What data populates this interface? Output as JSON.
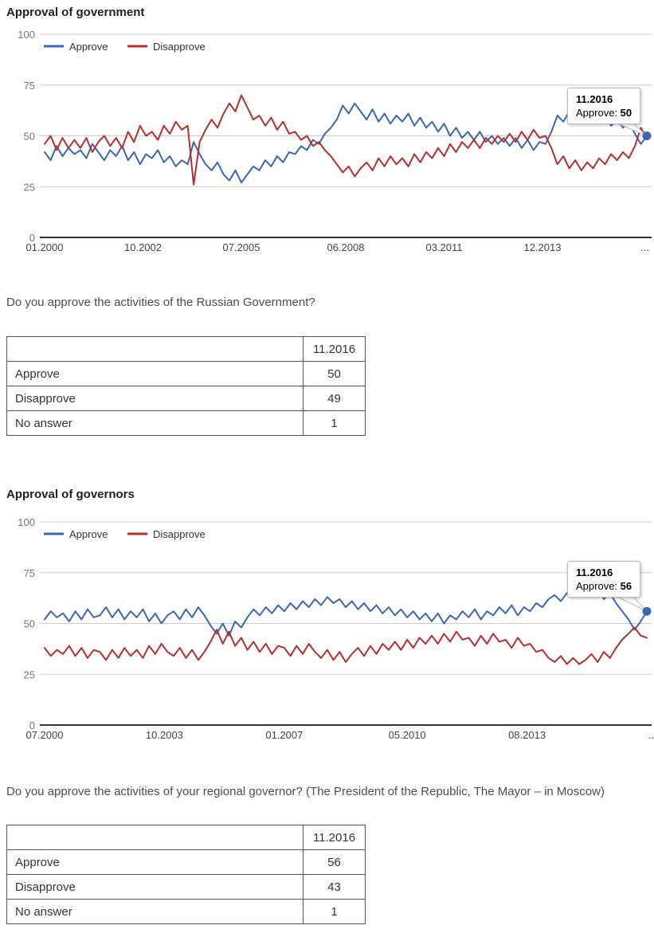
{
  "colors": {
    "approve": "#3b66b1",
    "disapprove": "#b82e2e",
    "grid": "#cccccc",
    "axis": "#333333",
    "ytick_label": "#757575",
    "xtick_label": "#444444",
    "legend_text": "#333333",
    "tooltip_border": "#bbbbbb"
  },
  "sections": [
    {
      "title": "Approval of government",
      "question": "Do you approve the activities of the Russian Government?"
    },
    {
      "title": "Approval of governors",
      "question": "Do you approve the activities of your regional governor? (The President of the Republic, The Mayor – in Moscow)"
    }
  ],
  "chart_data": [
    {
      "type": "line",
      "title": "Approval of government",
      "ylim": [
        0,
        100
      ],
      "yticks": [
        100,
        75,
        50,
        25,
        0
      ],
      "grid": true,
      "legend_position": "top-left",
      "x_start": "01.2000",
      "x_end": "11.2016",
      "total_months": 202,
      "xticks": [
        {
          "label": "01.2000",
          "month": 0
        },
        {
          "label": "10.2002",
          "month": 33
        },
        {
          "label": "07.2005",
          "month": 66
        },
        {
          "label": "06.2008",
          "month": 101
        },
        {
          "label": "03.2011",
          "month": 134
        },
        {
          "label": "12.2013",
          "month": 167
        },
        {
          "label": "...",
          "month": null
        }
      ],
      "series": [
        {
          "name": "Approve",
          "color": "#3b66b1",
          "values": [
            42,
            38,
            45,
            40,
            44,
            41,
            43,
            39,
            46,
            42,
            38,
            43,
            40,
            45,
            38,
            42,
            36,
            41,
            39,
            43,
            37,
            40,
            35,
            38,
            36,
            47,
            41,
            36,
            33,
            37,
            31,
            28,
            33,
            27,
            31,
            35,
            33,
            38,
            35,
            40,
            37,
            42,
            41,
            45,
            43,
            48,
            46,
            51,
            54,
            58,
            65,
            61,
            66,
            62,
            58,
            63,
            57,
            61,
            56,
            60,
            57,
            61,
            55,
            59,
            54,
            57,
            52,
            56,
            50,
            54,
            49,
            52,
            48,
            52,
            47,
            50,
            46,
            49,
            45,
            49,
            44,
            48,
            43,
            47,
            46,
            52,
            60,
            57,
            62,
            58,
            63,
            59,
            62,
            57,
            60,
            55,
            58,
            54,
            57,
            51,
            46,
            50
          ]
        },
        {
          "name": "Disapprove",
          "color": "#b82e2e",
          "values": [
            46,
            50,
            43,
            49,
            44,
            48,
            44,
            49,
            42,
            47,
            50,
            45,
            49,
            44,
            52,
            47,
            55,
            50,
            52,
            48,
            55,
            51,
            57,
            53,
            55,
            26,
            47,
            53,
            58,
            54,
            61,
            66,
            62,
            70,
            64,
            58,
            60,
            55,
            59,
            53,
            57,
            51,
            52,
            48,
            50,
            45,
            47,
            43,
            40,
            36,
            32,
            35,
            30,
            34,
            37,
            33,
            39,
            35,
            40,
            36,
            39,
            35,
            41,
            37,
            42,
            39,
            44,
            40,
            46,
            42,
            47,
            44,
            48,
            44,
            49,
            46,
            50,
            47,
            51,
            47,
            52,
            48,
            53,
            49,
            50,
            44,
            36,
            40,
            34,
            38,
            33,
            37,
            34,
            39,
            36,
            41,
            38,
            42,
            39,
            45,
            54,
            49
          ]
        }
      ],
      "end_dot": {
        "series": "Approve",
        "value": 50
      },
      "tooltip": {
        "date": "11.2016",
        "label": "Approve:",
        "value": "50"
      }
    },
    {
      "type": "line",
      "title": "Approval of governors",
      "ylim": [
        0,
        100
      ],
      "yticks": [
        100,
        75,
        50,
        25,
        0
      ],
      "grid": true,
      "legend_position": "top-left",
      "x_start": "07.2000",
      "x_end": "11.2016",
      "total_months": 196,
      "xticks": [
        {
          "label": "07.2000",
          "month": 0
        },
        {
          "label": "10.2003",
          "month": 39
        },
        {
          "label": "01.2007",
          "month": 78
        },
        {
          "label": "05.2010",
          "month": 118
        },
        {
          "label": "08.2013",
          "month": 157
        },
        {
          "label": "...",
          "month": null
        }
      ],
      "series": [
        {
          "name": "Approve",
          "color": "#3b66b1",
          "values": [
            52,
            56,
            53,
            55,
            51,
            56,
            52,
            57,
            53,
            54,
            58,
            53,
            57,
            52,
            56,
            53,
            57,
            51,
            55,
            50,
            54,
            56,
            52,
            57,
            53,
            58,
            54,
            49,
            45,
            50,
            44,
            51,
            48,
            53,
            57,
            54,
            58,
            55,
            59,
            56,
            60,
            57,
            61,
            58,
            62,
            59,
            63,
            60,
            62,
            58,
            61,
            57,
            60,
            56,
            59,
            55,
            58,
            54,
            57,
            53,
            56,
            52,
            55,
            51,
            55,
            50,
            54,
            52,
            56,
            53,
            57,
            52,
            56,
            54,
            58,
            55,
            59,
            54,
            58,
            56,
            60,
            58,
            62,
            64,
            61,
            65,
            63,
            66,
            68,
            64,
            67,
            62,
            65,
            60,
            56,
            52,
            47,
            51,
            56
          ]
        },
        {
          "name": "Disapprove",
          "color": "#b82e2e",
          "values": [
            38,
            34,
            37,
            35,
            39,
            34,
            38,
            33,
            37,
            36,
            32,
            37,
            33,
            38,
            34,
            37,
            33,
            39,
            35,
            40,
            36,
            34,
            38,
            33,
            37,
            32,
            36,
            41,
            47,
            40,
            46,
            39,
            43,
            37,
            41,
            36,
            40,
            35,
            39,
            38,
            34,
            39,
            35,
            40,
            36,
            33,
            37,
            32,
            36,
            31,
            35,
            38,
            34,
            39,
            35,
            40,
            37,
            41,
            37,
            42,
            38,
            43,
            40,
            44,
            40,
            45,
            41,
            46,
            42,
            43,
            39,
            44,
            40,
            45,
            41,
            42,
            38,
            43,
            39,
            40,
            36,
            37,
            33,
            31,
            34,
            30,
            33,
            30,
            32,
            35,
            31,
            36,
            33,
            38,
            42,
            45,
            48,
            44,
            43
          ]
        }
      ],
      "end_dot": {
        "series": "Approve",
        "value": 56
      },
      "tooltip": {
        "date": "11.2016",
        "label": "Approve:",
        "value": "56"
      }
    }
  ],
  "tables": [
    {
      "header": "11.2016",
      "rows": [
        {
          "label": "Approve",
          "value": "50"
        },
        {
          "label": "Disapprove",
          "value": "49"
        },
        {
          "label": "No answer",
          "value": "1"
        }
      ]
    },
    {
      "header": "11.2016",
      "rows": [
        {
          "label": "Approve",
          "value": "56"
        },
        {
          "label": "Disapprove",
          "value": "43"
        },
        {
          "label": "No answer",
          "value": "1"
        }
      ]
    }
  ]
}
